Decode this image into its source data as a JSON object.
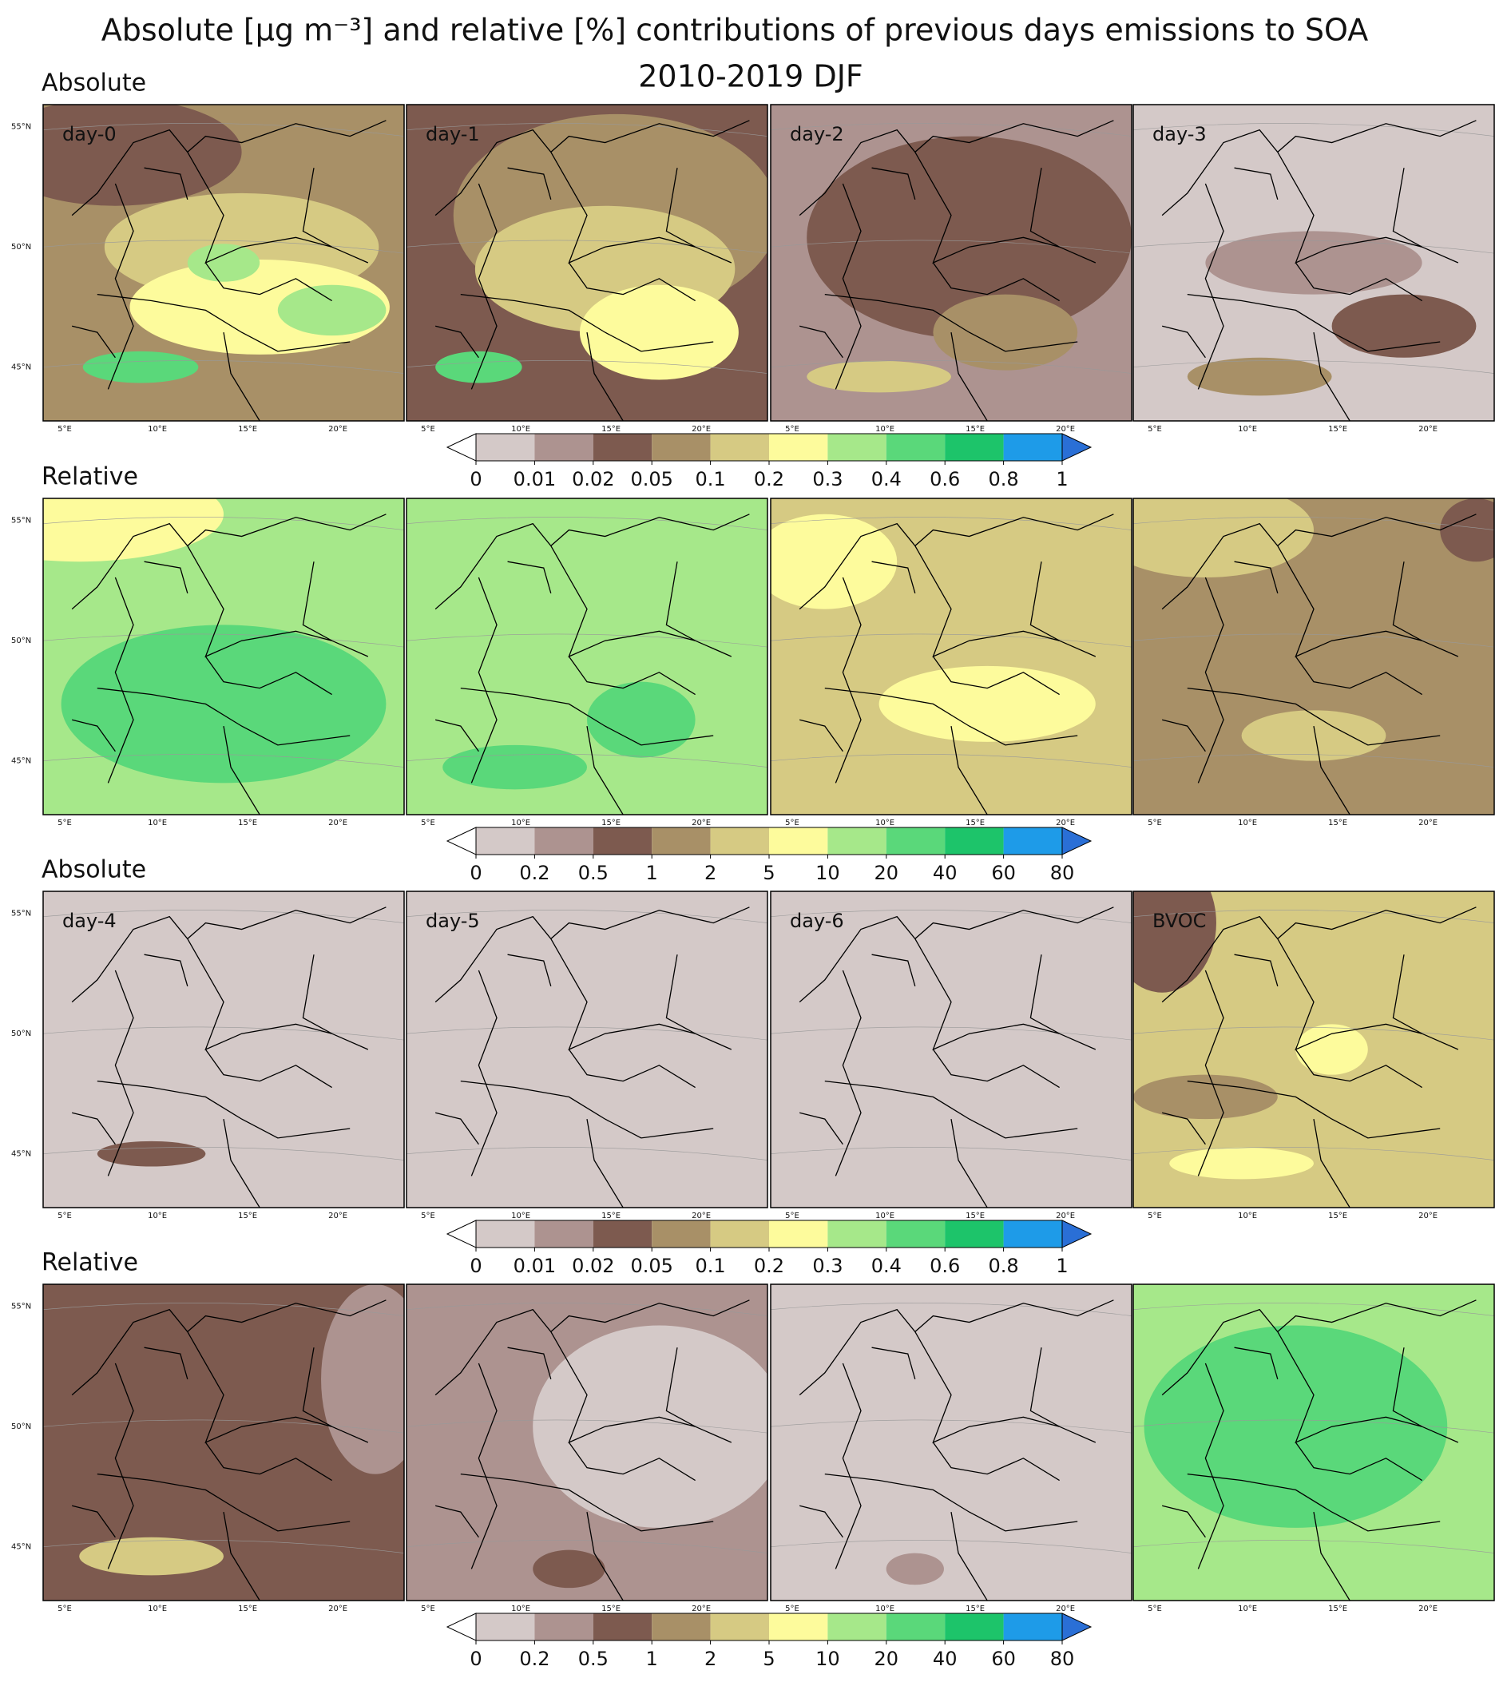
{
  "title": "Absolute [µg m⁻³] and relative [%] contributions of previous days emissions to SOA",
  "subtitle": "2010-2019 DJF",
  "rows": [
    {
      "label": "Absolute",
      "panels": [
        "day-0",
        "day-1",
        "day-2",
        "day-3"
      ]
    },
    {
      "label": "Relative"
    },
    {
      "label": "Absolute",
      "panels": [
        "day-4",
        "day-5",
        "day-6",
        "BVOC"
      ]
    },
    {
      "label": "Relative"
    }
  ],
  "lon_labels": [
    "5°E",
    "10°E",
    "15°E",
    "20°E"
  ],
  "lat_labels": [
    "55°N",
    "50°N",
    "45°N"
  ],
  "colors": [
    "#d4c9c8",
    "#ad9390",
    "#7d5a4f",
    "#a89067",
    "#d6ca83",
    "#fdfb9c",
    "#a6e88a",
    "#5ad87a",
    "#1dc46a",
    "#1e9be8"
  ],
  "colorbars": [
    {
      "ticks": [
        0,
        0.01,
        0.02,
        0.05,
        0.1,
        0.2,
        0.3,
        0.4,
        0.6,
        0.8,
        1
      ]
    },
    {
      "ticks": [
        0,
        0.2,
        0.5,
        1,
        2,
        5,
        10,
        20,
        40,
        60,
        80
      ]
    },
    {
      "ticks": [
        0,
        0.01,
        0.02,
        0.05,
        0.1,
        0.2,
        0.3,
        0.4,
        0.6,
        0.8,
        1
      ]
    },
    {
      "ticks": [
        0,
        0.2,
        0.5,
        1,
        2,
        5,
        10,
        20,
        40,
        60,
        80
      ]
    }
  ]
}
